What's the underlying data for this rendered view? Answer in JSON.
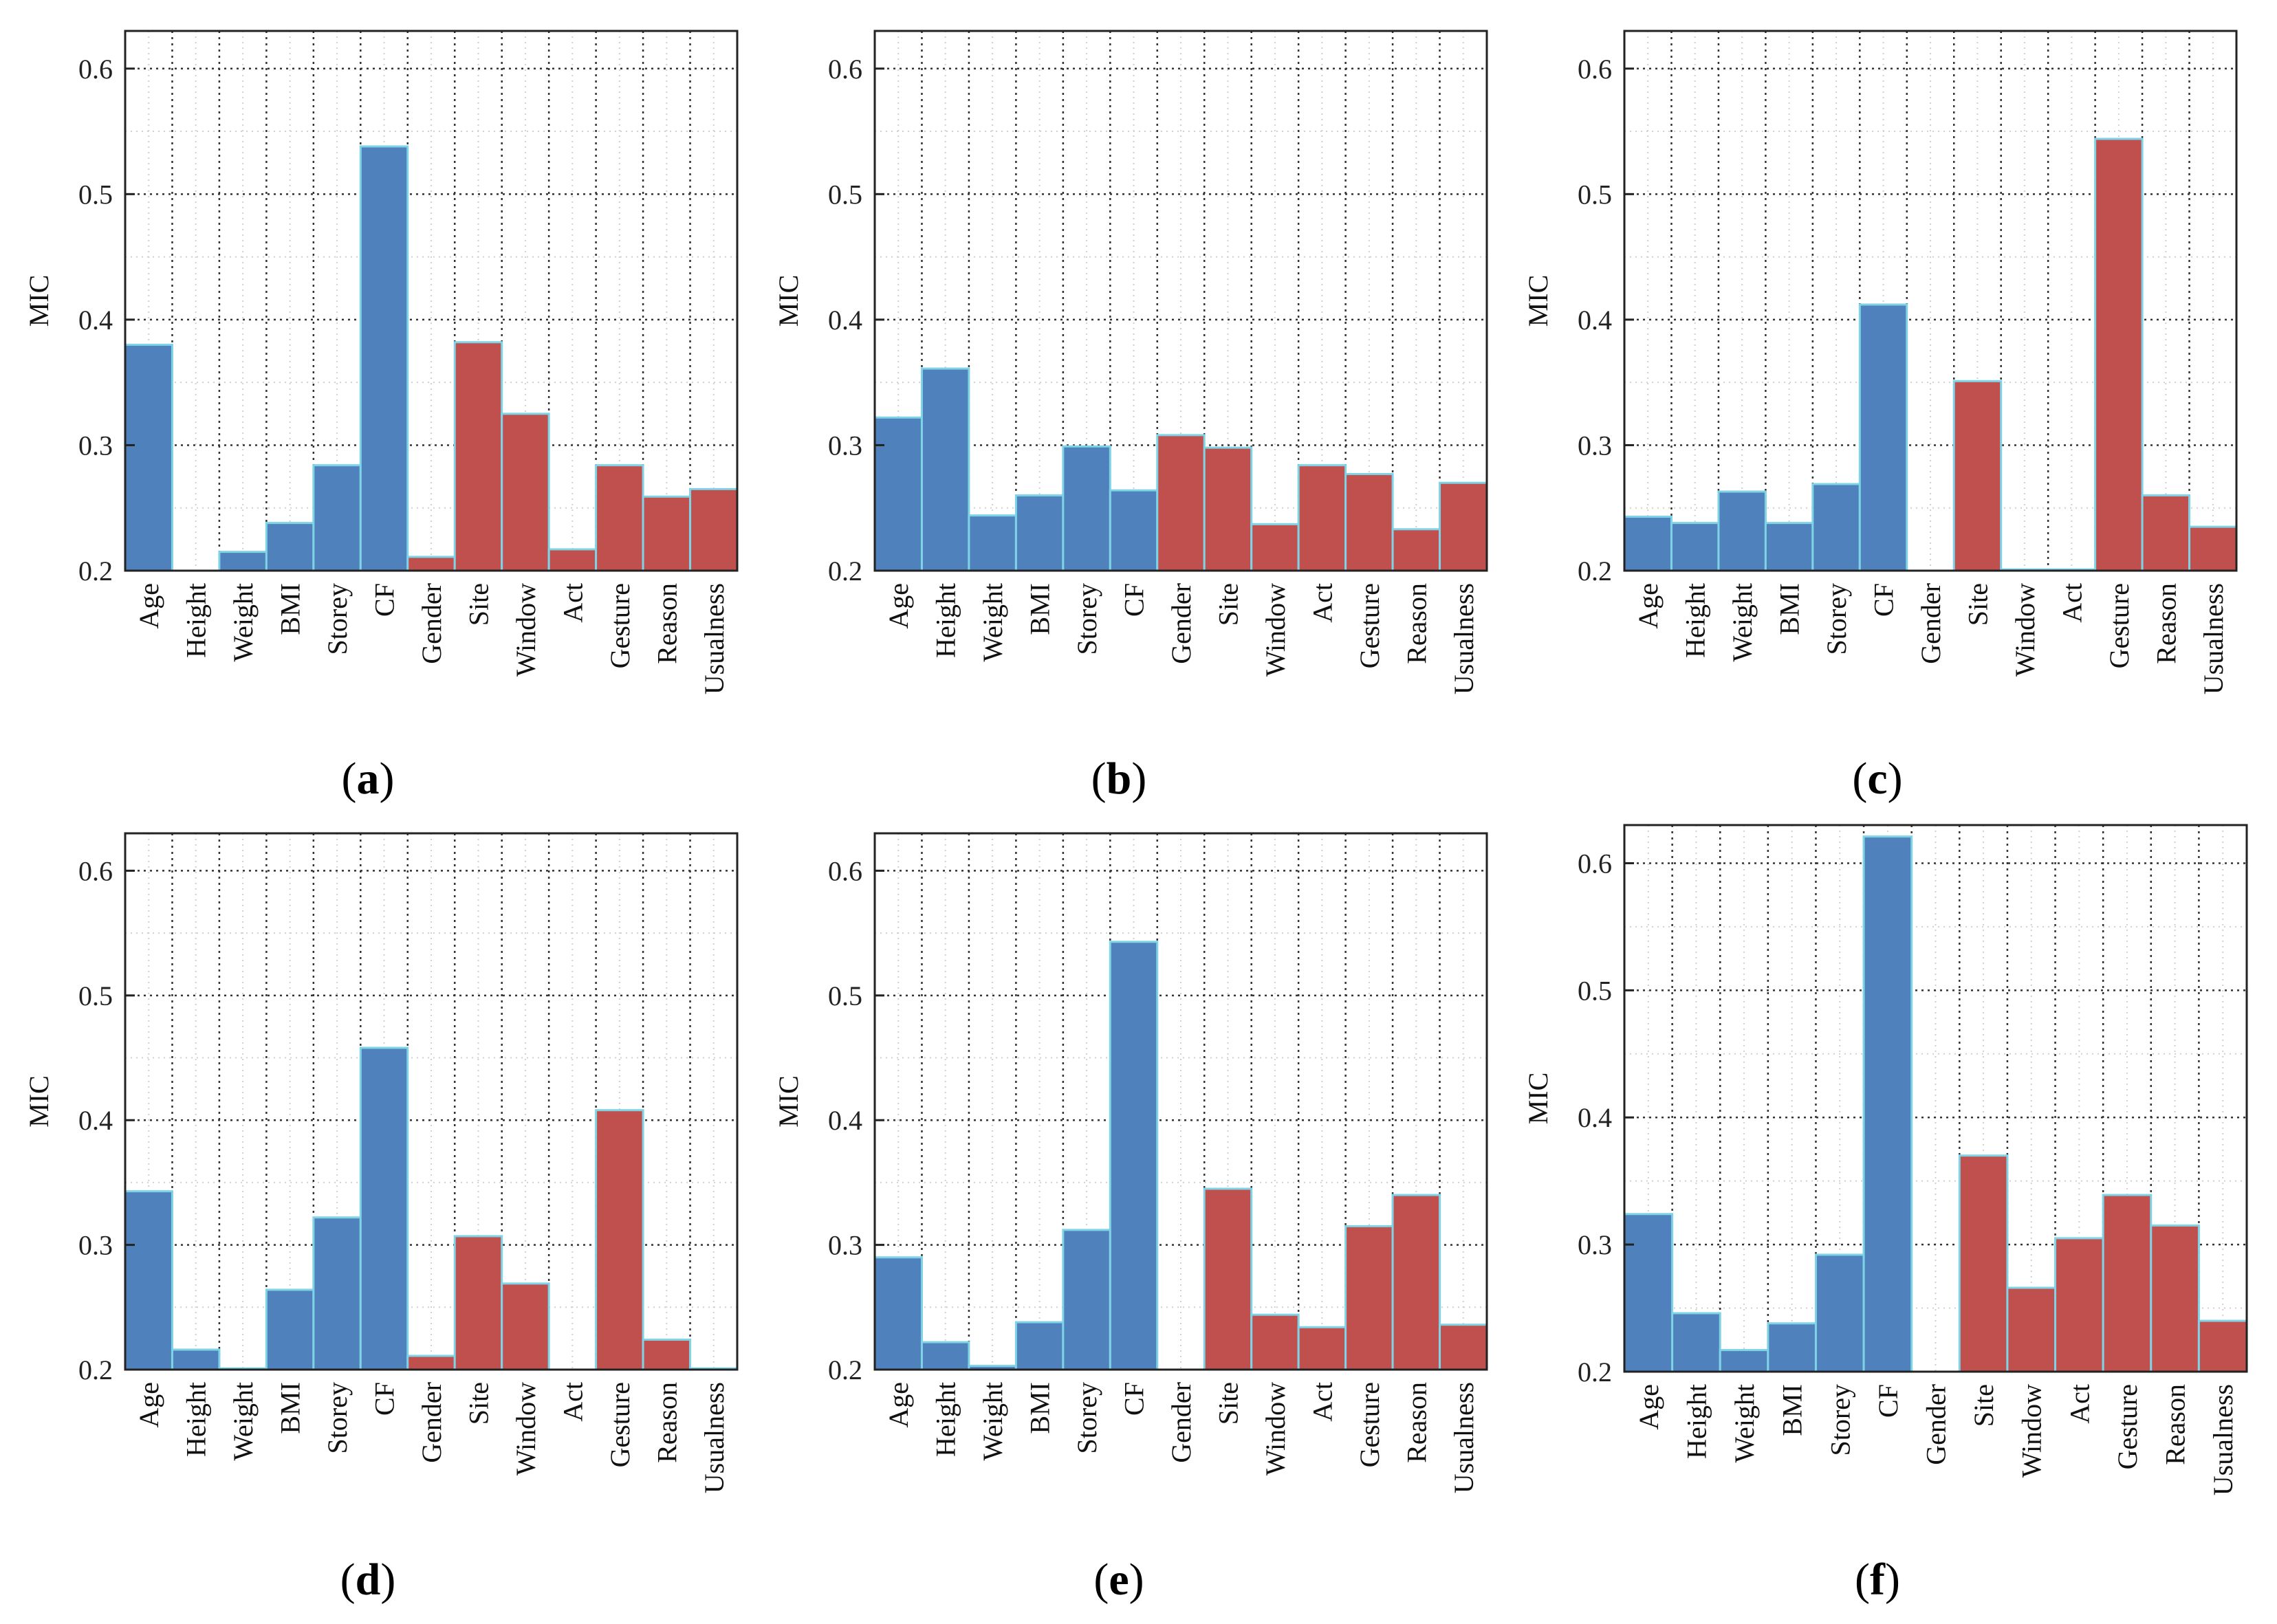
{
  "chart_data": [
    {
      "panel": "a",
      "type": "bar",
      "ylabel": "MIC",
      "ylim": [
        0.2,
        0.63
      ],
      "yticks": [
        0.2,
        0.3,
        0.4,
        0.5,
        0.6
      ],
      "grid": true,
      "categories": [
        "Age",
        "Height",
        "Weight",
        "BMI",
        "Storey",
        "CF",
        "Gender",
        "Site",
        "Window",
        "Act",
        "Gesture",
        "Reason",
        "Usualness"
      ],
      "values": [
        0.38,
        0.2,
        0.215,
        0.238,
        0.284,
        0.538,
        0.211,
        0.382,
        0.325,
        0.217,
        0.284,
        0.259,
        0.265
      ],
      "colors": [
        "#4f81bd",
        "#4f81bd",
        "#4f81bd",
        "#4f81bd",
        "#4f81bd",
        "#4f81bd",
        "#c0504d",
        "#c0504d",
        "#c0504d",
        "#c0504d",
        "#c0504d",
        "#c0504d",
        "#c0504d"
      ]
    },
    {
      "panel": "b",
      "type": "bar",
      "ylabel": "MIC",
      "ylim": [
        0.2,
        0.63
      ],
      "yticks": [
        0.2,
        0.3,
        0.4,
        0.5,
        0.6
      ],
      "grid": true,
      "categories": [
        "Age",
        "Height",
        "Weight",
        "BMI",
        "Storey",
        "CF",
        "Gender",
        "Site",
        "Window",
        "Act",
        "Gesture",
        "Reason",
        "Usualness"
      ],
      "values": [
        0.322,
        0.361,
        0.244,
        0.26,
        0.299,
        0.264,
        0.308,
        0.298,
        0.237,
        0.284,
        0.277,
        0.233,
        0.27
      ],
      "colors": [
        "#4f81bd",
        "#4f81bd",
        "#4f81bd",
        "#4f81bd",
        "#4f81bd",
        "#4f81bd",
        "#c0504d",
        "#c0504d",
        "#c0504d",
        "#c0504d",
        "#c0504d",
        "#c0504d",
        "#c0504d"
      ]
    },
    {
      "panel": "c",
      "type": "bar",
      "ylabel": "MIC",
      "ylim": [
        0.2,
        0.63
      ],
      "yticks": [
        0.2,
        0.3,
        0.4,
        0.5,
        0.6
      ],
      "grid": true,
      "categories": [
        "Age",
        "Height",
        "Weight",
        "BMI",
        "Storey",
        "CF",
        "Gender",
        "Site",
        "Window",
        "Act",
        "Gesture",
        "Reason",
        "Usualness"
      ],
      "values": [
        0.243,
        0.238,
        0.263,
        0.238,
        0.269,
        0.412,
        0.2,
        0.351,
        0.201,
        0.201,
        0.544,
        0.26,
        0.235
      ],
      "colors": [
        "#4f81bd",
        "#4f81bd",
        "#4f81bd",
        "#4f81bd",
        "#4f81bd",
        "#4f81bd",
        "#c0504d",
        "#c0504d",
        "#c0504d",
        "#c0504d",
        "#c0504d",
        "#c0504d",
        "#c0504d"
      ]
    },
    {
      "panel": "d",
      "type": "bar",
      "ylabel": "MIC",
      "ylim": [
        0.2,
        0.63
      ],
      "yticks": [
        0.2,
        0.3,
        0.4,
        0.5,
        0.6
      ],
      "grid": true,
      "categories": [
        "Age",
        "Height",
        "Weight",
        "BMI",
        "Storey",
        "CF",
        "Gender",
        "Site",
        "Window",
        "Act",
        "Gesture",
        "Reason",
        "Usualness"
      ],
      "values": [
        0.343,
        0.216,
        0.201,
        0.264,
        0.322,
        0.458,
        0.211,
        0.307,
        0.269,
        0.2,
        0.408,
        0.224,
        0.201
      ],
      "colors": [
        "#4f81bd",
        "#4f81bd",
        "#4f81bd",
        "#4f81bd",
        "#4f81bd",
        "#4f81bd",
        "#c0504d",
        "#c0504d",
        "#c0504d",
        "#c0504d",
        "#c0504d",
        "#c0504d",
        "#c0504d"
      ]
    },
    {
      "panel": "e",
      "type": "bar",
      "ylabel": "MIC",
      "ylim": [
        0.2,
        0.63
      ],
      "yticks": [
        0.2,
        0.3,
        0.4,
        0.5,
        0.6
      ],
      "grid": true,
      "categories": [
        "Age",
        "Height",
        "Weight",
        "BMI",
        "Storey",
        "CF",
        "Gender",
        "Site",
        "Window",
        "Act",
        "Gesture",
        "Reason",
        "Usualness"
      ],
      "values": [
        0.29,
        0.222,
        0.203,
        0.238,
        0.312,
        0.543,
        0.2,
        0.345,
        0.244,
        0.234,
        0.315,
        0.34,
        0.236
      ],
      "colors": [
        "#4f81bd",
        "#4f81bd",
        "#4f81bd",
        "#4f81bd",
        "#4f81bd",
        "#4f81bd",
        "#c0504d",
        "#c0504d",
        "#c0504d",
        "#c0504d",
        "#c0504d",
        "#c0504d",
        "#c0504d"
      ]
    },
    {
      "panel": "f",
      "type": "bar",
      "ylabel": "MIC",
      "ylim": [
        0.2,
        0.63
      ],
      "yticks": [
        0.2,
        0.3,
        0.4,
        0.5,
        0.6
      ],
      "grid": true,
      "categories": [
        "Age",
        "Height",
        "Weight",
        "BMI",
        "Storey",
        "CF",
        "Gender",
        "Site",
        "Window",
        "Act",
        "Gesture",
        "Reason",
        "Usualness"
      ],
      "values": [
        0.324,
        0.246,
        0.217,
        0.238,
        0.292,
        0.621,
        0.2,
        0.37,
        0.266,
        0.305,
        0.339,
        0.315,
        0.24
      ],
      "colors": [
        "#4f81bd",
        "#4f81bd",
        "#4f81bd",
        "#4f81bd",
        "#4f81bd",
        "#4f81bd",
        "#c0504d",
        "#c0504d",
        "#c0504d",
        "#c0504d",
        "#c0504d",
        "#c0504d",
        "#c0504d"
      ]
    }
  ],
  "panel_labels": [
    {
      "open": "(",
      "letter": "a",
      "close": ")"
    },
    {
      "open": "(",
      "letter": "b",
      "close": ")"
    },
    {
      "open": "(",
      "letter": "c",
      "close": ")"
    },
    {
      "open": "(",
      "letter": "d",
      "close": ")"
    },
    {
      "open": "(",
      "letter": "e",
      "close": ")"
    },
    {
      "open": "(",
      "letter": "f",
      "close": ")"
    }
  ]
}
